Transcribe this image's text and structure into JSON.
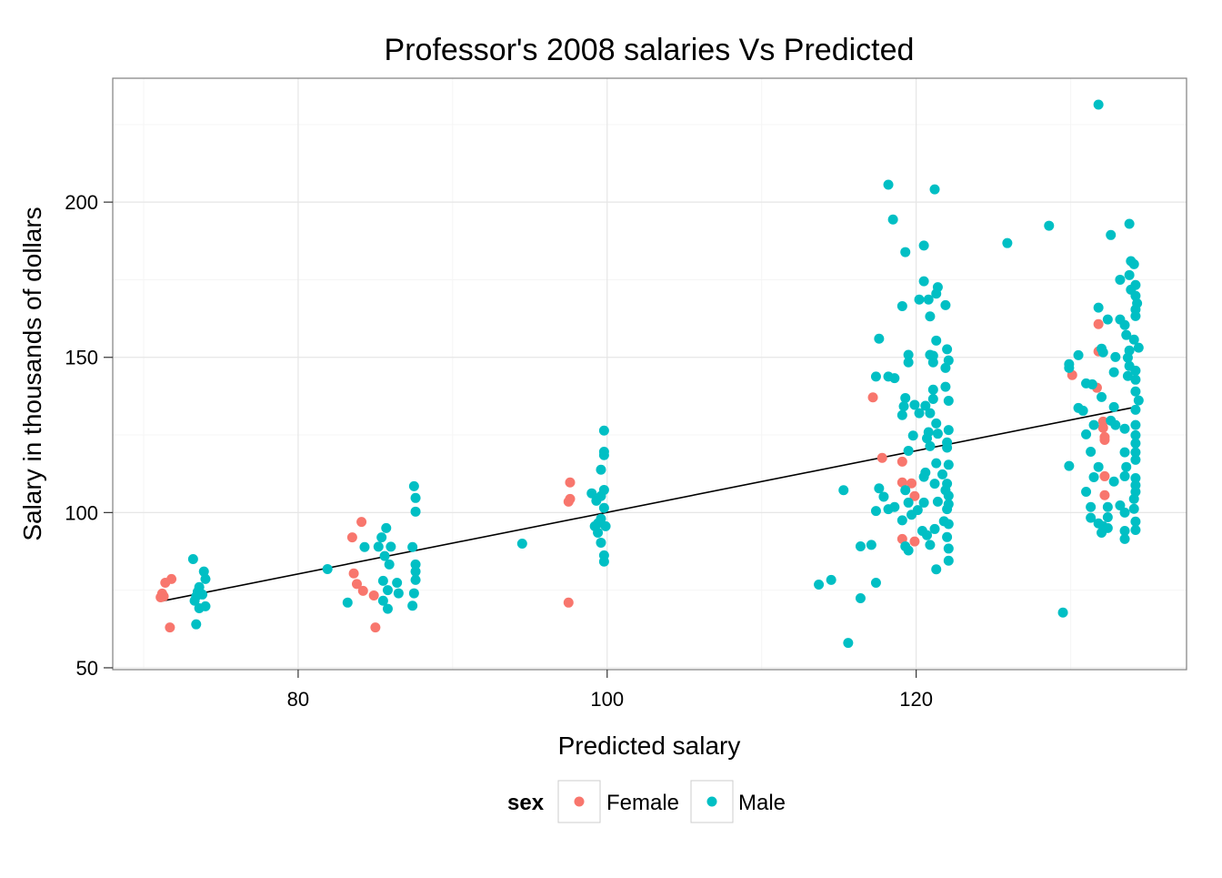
{
  "chart_data": {
    "type": "scatter",
    "title": "Professor's 2008 salaries Vs Predicted",
    "xlabel": "Predicted salary",
    "ylabel": "Salary in thousands of dollars",
    "xlim": [
      68,
      137.5
    ],
    "ylim": [
      49.4,
      239.9
    ],
    "x_ticks": [
      80,
      100,
      120
    ],
    "x_minor": [
      70,
      90,
      110,
      130
    ],
    "y_ticks": [
      50,
      100,
      150,
      200
    ],
    "y_minor": [
      75,
      125,
      175,
      225
    ],
    "grid": true,
    "legend": {
      "title": "sex",
      "position": "bottom",
      "entries": [
        "Female",
        "Male"
      ]
    },
    "colors": {
      "Female": "#F8766D",
      "Male": "#00BFC4",
      "line": "#000000"
    },
    "fit_line": [
      [
        71.1,
        71.4
      ],
      [
        134.4,
        134.2
      ]
    ],
    "series": [
      {
        "name": "Female",
        "points": [
          [
            71.3,
            73
          ],
          [
            71.4,
            77.4
          ],
          [
            71.8,
            78.6
          ],
          [
            71.2,
            73.9
          ],
          [
            71.7,
            63
          ],
          [
            71.1,
            72.7
          ],
          [
            83.5,
            92
          ],
          [
            84.1,
            97
          ],
          [
            83.6,
            80.4
          ],
          [
            83.8,
            77
          ],
          [
            84.2,
            74.8
          ],
          [
            84.9,
            73.3
          ],
          [
            85,
            63
          ],
          [
            97.6,
            109.7
          ],
          [
            97.6,
            104.4
          ],
          [
            97.5,
            103.5
          ],
          [
            97.5,
            71
          ],
          [
            117.2,
            137.1
          ],
          [
            117.8,
            117.6
          ],
          [
            119.1,
            116.4
          ],
          [
            119.1,
            109.7
          ],
          [
            119.7,
            109.4
          ],
          [
            119.9,
            105.3
          ],
          [
            119.1,
            91.5
          ],
          [
            119.9,
            90.7
          ],
          [
            131.8,
            160.7
          ],
          [
            130.1,
            144.3
          ],
          [
            131.8,
            151.9
          ],
          [
            131.7,
            140.2
          ],
          [
            132.1,
            129.3
          ],
          [
            132.1,
            127.3
          ],
          [
            132.2,
            124.3
          ],
          [
            132.2,
            123.4
          ],
          [
            132.2,
            111.7
          ],
          [
            132.2,
            105.6
          ]
        ]
      },
      {
        "name": "Male",
        "points": [
          [
            73.2,
            85
          ],
          [
            73.9,
            81
          ],
          [
            74,
            78.6
          ],
          [
            73.6,
            76
          ],
          [
            73.5,
            74.5
          ],
          [
            73.4,
            73
          ],
          [
            73.8,
            73.6
          ],
          [
            73.6,
            69.2
          ],
          [
            74,
            69.8
          ],
          [
            73.4,
            64
          ],
          [
            73.3,
            71.6
          ],
          [
            81.9,
            81.8
          ],
          [
            83.2,
            71
          ],
          [
            84.3,
            88.9
          ],
          [
            85.7,
            95
          ],
          [
            85.4,
            92
          ],
          [
            85.2,
            89
          ],
          [
            86,
            89
          ],
          [
            85.6,
            86
          ],
          [
            85.9,
            83.3
          ],
          [
            85.5,
            78
          ],
          [
            86.4,
            77.4
          ],
          [
            85.8,
            75
          ],
          [
            85.5,
            71.6
          ],
          [
            86.5,
            74
          ],
          [
            85.8,
            69
          ],
          [
            87.5,
            108.5
          ],
          [
            87.6,
            104.7
          ],
          [
            87.6,
            100.3
          ],
          [
            87.4,
            88.9
          ],
          [
            87.6,
            83.3
          ],
          [
            87.6,
            78.3
          ],
          [
            87.5,
            74
          ],
          [
            87.4,
            70
          ],
          [
            87.6,
            81
          ],
          [
            94.5,
            90
          ],
          [
            99.8,
            126.4
          ],
          [
            99.8,
            119.6
          ],
          [
            99.8,
            118.5
          ],
          [
            99.6,
            113.8
          ],
          [
            99.8,
            107.3
          ],
          [
            99.6,
            105.3
          ],
          [
            99,
            106.2
          ],
          [
            99.3,
            103.8
          ],
          [
            99.8,
            101.5
          ],
          [
            99.6,
            98
          ],
          [
            99.2,
            95.6
          ],
          [
            99.9,
            95.6
          ],
          [
            99.4,
            93.5
          ],
          [
            99.6,
            90.3
          ],
          [
            99.8,
            86.2
          ],
          [
            99.8,
            84.2
          ],
          [
            99.4,
            96.5
          ],
          [
            118.2,
            205.6
          ],
          [
            121.2,
            204.1
          ],
          [
            118.5,
            194.4
          ],
          [
            120.5,
            186
          ],
          [
            119.3,
            183.9
          ],
          [
            120.5,
            174.5
          ],
          [
            121.4,
            172.6
          ],
          [
            121.3,
            170.5
          ],
          [
            120.2,
            168.6
          ],
          [
            120.8,
            168.6
          ],
          [
            121.9,
            166.8
          ],
          [
            119.1,
            166.5
          ],
          [
            120.9,
            163.2
          ],
          [
            117.6,
            156
          ],
          [
            121.3,
            155.4
          ],
          [
            122,
            152.6
          ],
          [
            119.5,
            150.8
          ],
          [
            120.9,
            150.8
          ],
          [
            121.1,
            150.5
          ],
          [
            119.5,
            148.4
          ],
          [
            121.1,
            148.4
          ],
          [
            122.1,
            149
          ],
          [
            121.9,
            146.6
          ],
          [
            117.4,
            143.8
          ],
          [
            118.2,
            143.8
          ],
          [
            118.6,
            143.3
          ],
          [
            121.1,
            139.6
          ],
          [
            121.9,
            140.5
          ],
          [
            121.1,
            136.6
          ],
          [
            122.1,
            136
          ],
          [
            119.3,
            136.9
          ],
          [
            119.2,
            134.2
          ],
          [
            119.9,
            134.7
          ],
          [
            120.6,
            134.4
          ],
          [
            119.1,
            131.4
          ],
          [
            120.2,
            132
          ],
          [
            120.9,
            132
          ],
          [
            121.3,
            128.7
          ],
          [
            122.1,
            126.6
          ],
          [
            120.8,
            125.9
          ],
          [
            121.4,
            125.4
          ],
          [
            119.8,
            124.8
          ],
          [
            120.7,
            123.9
          ],
          [
            122,
            122.6
          ],
          [
            120.9,
            121.4
          ],
          [
            122,
            120.9
          ],
          [
            119.5,
            119.9
          ],
          [
            121.3,
            115.9
          ],
          [
            122.1,
            115.4
          ],
          [
            120.6,
            112.9
          ],
          [
            120.5,
            111.5
          ],
          [
            121.7,
            112.3
          ],
          [
            121.2,
            109.3
          ],
          [
            122,
            109.3
          ],
          [
            121.9,
            107.2
          ],
          [
            119.3,
            107.2
          ],
          [
            115.3,
            107.2
          ],
          [
            117.6,
            107.8
          ],
          [
            117.9,
            105.1
          ],
          [
            122.1,
            105.4
          ],
          [
            119.5,
            103.2
          ],
          [
            120.5,
            103.2
          ],
          [
            121.4,
            103.5
          ],
          [
            122.1,
            102.7
          ],
          [
            120.1,
            100.8
          ],
          [
            119.7,
            99.3
          ],
          [
            122,
            101.1
          ],
          [
            118.2,
            101.1
          ],
          [
            118.6,
            101.8
          ],
          [
            117.4,
            100.5
          ],
          [
            119.1,
            97.5
          ],
          [
            121.8,
            97.2
          ],
          [
            122.1,
            96.3
          ],
          [
            120.4,
            94.1
          ],
          [
            121.2,
            94.7
          ],
          [
            120.7,
            92.7
          ],
          [
            122,
            92.1
          ],
          [
            120.9,
            89.6
          ],
          [
            119.3,
            89.1
          ],
          [
            119.5,
            87.8
          ],
          [
            122.1,
            88.4
          ],
          [
            122.1,
            84.5
          ],
          [
            121.3,
            81.7
          ],
          [
            116.4,
            89.1
          ],
          [
            117.1,
            89.6
          ],
          [
            113.7,
            76.8
          ],
          [
            114.5,
            78.3
          ],
          [
            117.4,
            77.4
          ],
          [
            116.4,
            72.4
          ],
          [
            115.6,
            58
          ],
          [
            125.9,
            186.8
          ],
          [
            131.8,
            231.4
          ],
          [
            128.6,
            192.4
          ],
          [
            133.8,
            193
          ],
          [
            132.6,
            189.4
          ],
          [
            133.9,
            181
          ],
          [
            134.1,
            180
          ],
          [
            133.8,
            176.5
          ],
          [
            133.2,
            175
          ],
          [
            134.2,
            173.3
          ],
          [
            133.9,
            171.8
          ],
          [
            134.2,
            169.8
          ],
          [
            134.3,
            167.4
          ],
          [
            134.2,
            165.4
          ],
          [
            134.2,
            163.3
          ],
          [
            131.8,
            166
          ],
          [
            132.4,
            162.2
          ],
          [
            133.2,
            162.2
          ],
          [
            133.5,
            160.4
          ],
          [
            133.6,
            157.2
          ],
          [
            134.1,
            155.7
          ],
          [
            134.4,
            153.1
          ],
          [
            133.8,
            152.2
          ],
          [
            132,
            152.8
          ],
          [
            132.1,
            151.6
          ],
          [
            132.9,
            150.1
          ],
          [
            133.7,
            149.9
          ],
          [
            129.9,
            147.8
          ],
          [
            129.9,
            146.6
          ],
          [
            130.5,
            150.7
          ],
          [
            132.8,
            145.2
          ],
          [
            133.8,
            147.2
          ],
          [
            134.2,
            145.7
          ],
          [
            133.7,
            144
          ],
          [
            134.2,
            142.8
          ],
          [
            131,
            141.6
          ],
          [
            131.4,
            141.3
          ],
          [
            132,
            137.2
          ],
          [
            134.2,
            139
          ],
          [
            134.4,
            136.1
          ],
          [
            130.5,
            133.7
          ],
          [
            130.8,
            132.8
          ],
          [
            132.8,
            134
          ],
          [
            134.2,
            133.1
          ],
          [
            131.5,
            128.2
          ],
          [
            132.6,
            129.6
          ],
          [
            132.9,
            128.2
          ],
          [
            133.5,
            127
          ],
          [
            134.2,
            128.2
          ],
          [
            131,
            125.2
          ],
          [
            134.2,
            124.9
          ],
          [
            134.2,
            122.3
          ],
          [
            131.3,
            119.6
          ],
          [
            133.5,
            119.4
          ],
          [
            134.2,
            119.4
          ],
          [
            134.2,
            117
          ],
          [
            129.9,
            115
          ],
          [
            131.8,
            114.7
          ],
          [
            133.6,
            114.7
          ],
          [
            133.5,
            111.7
          ],
          [
            131.5,
            111.4
          ],
          [
            132.8,
            110
          ],
          [
            134.2,
            111.1
          ],
          [
            134.2,
            108.8
          ],
          [
            131,
            106.7
          ],
          [
            134.2,
            106.7
          ],
          [
            131.3,
            101.8
          ],
          [
            133.2,
            102.3
          ],
          [
            134.1,
            104.4
          ],
          [
            131.3,
            98.3
          ],
          [
            132.4,
            101.8
          ],
          [
            132.4,
            98.5
          ],
          [
            133.5,
            100
          ],
          [
            134.1,
            101.2
          ],
          [
            134.2,
            97.1
          ],
          [
            134.2,
            94.4
          ],
          [
            131.8,
            96.5
          ],
          [
            132.1,
            95.6
          ],
          [
            132.4,
            95
          ],
          [
            133.5,
            94.1
          ],
          [
            129.5,
            67.8
          ],
          [
            133.5,
            91.5
          ],
          [
            132,
            93.5
          ]
        ]
      }
    ]
  }
}
